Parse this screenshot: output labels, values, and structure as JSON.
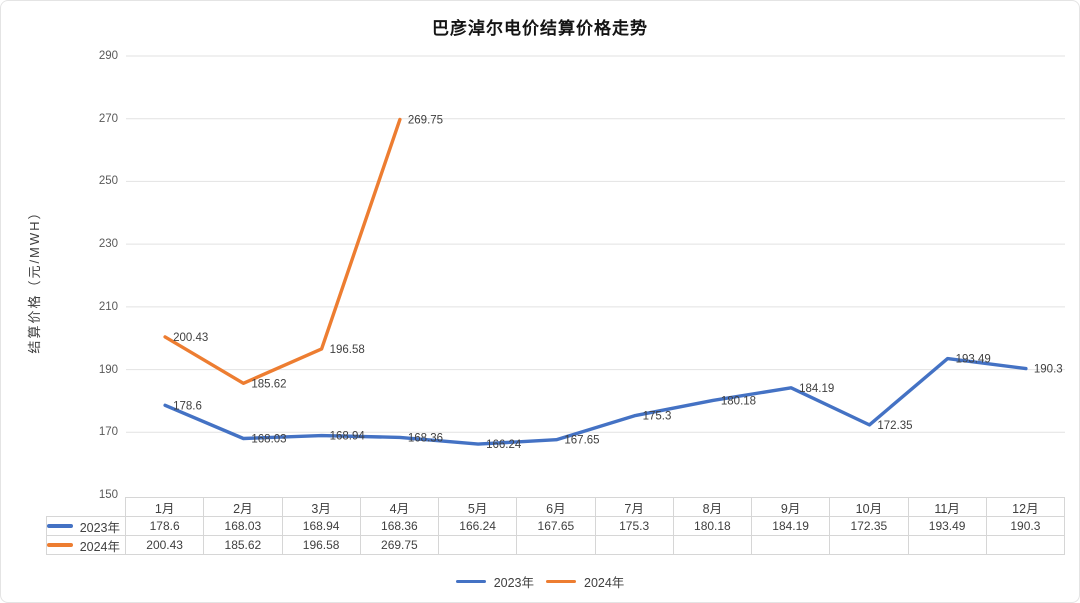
{
  "title": "巴彦淖尔电价结算价格走势",
  "chart_data": {
    "type": "line",
    "categories": [
      "1月",
      "2月",
      "3月",
      "4月",
      "5月",
      "6月",
      "7月",
      "8月",
      "9月",
      "10月",
      "11月",
      "12月"
    ],
    "series": [
      {
        "name": "2023年",
        "color": "#4472C4",
        "values": [
          178.6,
          168.03,
          168.94,
          168.36,
          166.24,
          167.65,
          175.3,
          180.18,
          184.19,
          172.35,
          193.49,
          190.3
        ]
      },
      {
        "name": "2024年",
        "color": "#ED7D31",
        "values": [
          200.43,
          185.62,
          196.58,
          269.75,
          null,
          null,
          null,
          null,
          null,
          null,
          null,
          null
        ]
      }
    ],
    "title": "巴彦淖尔电价结算价格走势",
    "xlabel": "",
    "ylabel": "结算价格（元/MWH）",
    "ylim": [
      150,
      290
    ],
    "y_ticks": [
      150,
      170,
      190,
      210,
      230,
      250,
      270,
      290
    ],
    "grid": "horizontal-only",
    "gridline_color": "#e2e2e2",
    "data_label_color": "#404040",
    "legend_position": "bottom",
    "has_data_table": true
  },
  "legend": {
    "items": [
      {
        "label": "2023年",
        "color": "#4472C4"
      },
      {
        "label": "2024年",
        "color": "#ED7D31"
      }
    ]
  }
}
